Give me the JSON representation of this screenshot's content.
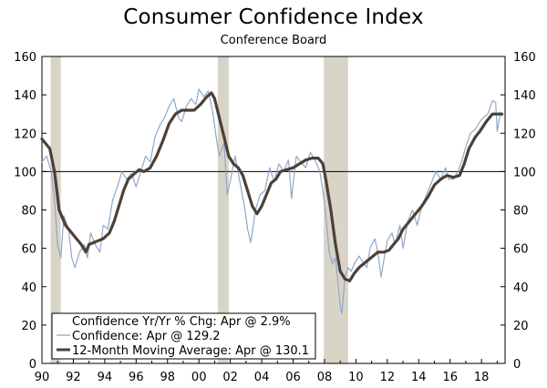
{
  "chart_data": {
    "type": "line",
    "title": "Consumer Confidence Index",
    "subtitle": "Conference Board",
    "ylim": [
      0,
      160
    ],
    "yticks": [
      0,
      20,
      40,
      60,
      80,
      100,
      120,
      140,
      160
    ],
    "xlim": [
      1990,
      2019.5
    ],
    "xticks": [
      {
        "value": 1990,
        "label": "90"
      },
      {
        "value": 1992,
        "label": "92"
      },
      {
        "value": 1994,
        "label": "94"
      },
      {
        "value": 1996,
        "label": "96"
      },
      {
        "value": 1998,
        "label": "98"
      },
      {
        "value": 2000,
        "label": "00"
      },
      {
        "value": 2002,
        "label": "02"
      },
      {
        "value": 2004,
        "label": "04"
      },
      {
        "value": 2006,
        "label": "06"
      },
      {
        "value": 2008,
        "label": "08"
      },
      {
        "value": 2010,
        "label": "10"
      },
      {
        "value": 2012,
        "label": "12"
      },
      {
        "value": 2014,
        "label": "14"
      },
      {
        "value": 2016,
        "label": "16"
      },
      {
        "value": 2018,
        "label": "18"
      }
    ],
    "reference_line": 100,
    "recessions": [
      [
        1990.55,
        1991.2
      ],
      [
        2001.2,
        2001.9
      ],
      [
        2007.95,
        2009.5
      ]
    ],
    "legend": [
      {
        "label": "Confidence Yr/Yr % Chg: Apr @ 2.9%",
        "style": "none"
      },
      {
        "label": "Confidence: Apr @ 129.2",
        "style": "thin"
      },
      {
        "label": "12-Month Moving Average: Apr @ 130.1",
        "style": "thick"
      }
    ],
    "series": [
      {
        "name": "Confidence",
        "color": "#8fa8c8",
        "points": [
          [
            1990.0,
            105
          ],
          [
            1990.3,
            108
          ],
          [
            1990.6,
            100
          ],
          [
            1990.8,
            85
          ],
          [
            1991.0,
            62
          ],
          [
            1991.2,
            55
          ],
          [
            1991.4,
            77
          ],
          [
            1991.7,
            70
          ],
          [
            1991.9,
            55
          ],
          [
            1992.1,
            50
          ],
          [
            1992.4,
            58
          ],
          [
            1992.7,
            62
          ],
          [
            1992.9,
            55
          ],
          [
            1993.1,
            68
          ],
          [
            1993.4,
            62
          ],
          [
            1993.7,
            58
          ],
          [
            1993.9,
            72
          ],
          [
            1994.2,
            70
          ],
          [
            1994.5,
            85
          ],
          [
            1994.8,
            92
          ],
          [
            1995.1,
            100
          ],
          [
            1995.4,
            96
          ],
          [
            1995.7,
            99
          ],
          [
            1996.0,
            92
          ],
          [
            1996.3,
            100
          ],
          [
            1996.6,
            108
          ],
          [
            1996.9,
            105
          ],
          [
            1997.2,
            118
          ],
          [
            1997.5,
            124
          ],
          [
            1997.8,
            128
          ],
          [
            1998.1,
            134
          ],
          [
            1998.4,
            138
          ],
          [
            1998.7,
            128
          ],
          [
            1998.9,
            126
          ],
          [
            1999.2,
            134
          ],
          [
            1999.5,
            138
          ],
          [
            1999.8,
            135
          ],
          [
            2000.0,
            143
          ],
          [
            2000.3,
            139
          ],
          [
            2000.6,
            142
          ],
          [
            2000.9,
            130
          ],
          [
            2001.1,
            118
          ],
          [
            2001.3,
            108
          ],
          [
            2001.6,
            115
          ],
          [
            2001.8,
            88
          ],
          [
            2002.0,
            95
          ],
          [
            2002.3,
            108
          ],
          [
            2002.6,
            95
          ],
          [
            2002.9,
            82
          ],
          [
            2003.1,
            70
          ],
          [
            2003.3,
            63
          ],
          [
            2003.6,
            80
          ],
          [
            2003.9,
            88
          ],
          [
            2004.2,
            90
          ],
          [
            2004.5,
            102
          ],
          [
            2004.8,
            95
          ],
          [
            2005.1,
            104
          ],
          [
            2005.4,
            100
          ],
          [
            2005.7,
            106
          ],
          [
            2005.9,
            86
          ],
          [
            2006.2,
            108
          ],
          [
            2006.5,
            105
          ],
          [
            2006.8,
            102
          ],
          [
            2007.1,
            110
          ],
          [
            2007.4,
            106
          ],
          [
            2007.7,
            100
          ],
          [
            2007.9,
            90
          ],
          [
            2008.1,
            76
          ],
          [
            2008.3,
            58
          ],
          [
            2008.5,
            52
          ],
          [
            2008.7,
            55
          ],
          [
            2008.9,
            38
          ],
          [
            2009.0,
            30
          ],
          [
            2009.1,
            26
          ],
          [
            2009.3,
            45
          ],
          [
            2009.5,
            50
          ],
          [
            2009.7,
            48
          ],
          [
            2009.9,
            52
          ],
          [
            2010.2,
            56
          ],
          [
            2010.5,
            52
          ],
          [
            2010.7,
            50
          ],
          [
            2010.9,
            60
          ],
          [
            2011.2,
            65
          ],
          [
            2011.4,
            58
          ],
          [
            2011.6,
            45
          ],
          [
            2011.8,
            55
          ],
          [
            2012.0,
            64
          ],
          [
            2012.3,
            68
          ],
          [
            2012.5,
            62
          ],
          [
            2012.8,
            72
          ],
          [
            2013.0,
            60
          ],
          [
            2013.3,
            74
          ],
          [
            2013.6,
            80
          ],
          [
            2013.9,
            72
          ],
          [
            2014.2,
            82
          ],
          [
            2014.5,
            88
          ],
          [
            2014.8,
            94
          ],
          [
            2015.1,
            100
          ],
          [
            2015.4,
            96
          ],
          [
            2015.7,
            102
          ],
          [
            2015.9,
            96
          ],
          [
            2016.2,
            96
          ],
          [
            2016.5,
            100
          ],
          [
            2016.8,
            107
          ],
          [
            2017.0,
            113
          ],
          [
            2017.3,
            120
          ],
          [
            2017.6,
            122
          ],
          [
            2017.9,
            126
          ],
          [
            2018.1,
            128
          ],
          [
            2018.4,
            130
          ],
          [
            2018.7,
            137
          ],
          [
            2018.9,
            136
          ],
          [
            2019.0,
            121
          ],
          [
            2019.2,
            131
          ],
          [
            2019.3,
            129
          ]
        ]
      },
      {
        "name": "12-Month Moving Average",
        "color": "#4e4037",
        "points": [
          [
            1990.0,
            117
          ],
          [
            1990.5,
            112
          ],
          [
            1990.8,
            100
          ],
          [
            1991.1,
            80
          ],
          [
            1991.5,
            72
          ],
          [
            1991.9,
            68
          ],
          [
            1992.2,
            65
          ],
          [
            1992.5,
            62
          ],
          [
            1992.8,
            58
          ],
          [
            1993.0,
            62
          ],
          [
            1993.3,
            63
          ],
          [
            1993.6,
            64
          ],
          [
            1993.9,
            65
          ],
          [
            1994.3,
            68
          ],
          [
            1994.6,
            74
          ],
          [
            1994.9,
            82
          ],
          [
            1995.2,
            90
          ],
          [
            1995.5,
            96
          ],
          [
            1995.9,
            99
          ],
          [
            1996.2,
            101
          ],
          [
            1996.5,
            100
          ],
          [
            1996.9,
            102
          ],
          [
            1997.3,
            108
          ],
          [
            1997.7,
            116
          ],
          [
            1998.1,
            125
          ],
          [
            1998.5,
            130
          ],
          [
            1998.9,
            132
          ],
          [
            1999.3,
            132
          ],
          [
            1999.7,
            132
          ],
          [
            2000.1,
            135
          ],
          [
            2000.5,
            139
          ],
          [
            2000.8,
            141
          ],
          [
            2001.0,
            138
          ],
          [
            2001.3,
            128
          ],
          [
            2001.6,
            118
          ],
          [
            2001.9,
            108
          ],
          [
            2002.2,
            104
          ],
          [
            2002.5,
            102
          ],
          [
            2002.8,
            98
          ],
          [
            2003.1,
            90
          ],
          [
            2003.4,
            82
          ],
          [
            2003.7,
            78
          ],
          [
            2004.0,
            82
          ],
          [
            2004.3,
            88
          ],
          [
            2004.6,
            94
          ],
          [
            2004.9,
            96
          ],
          [
            2005.2,
            100
          ],
          [
            2005.6,
            101
          ],
          [
            2006.0,
            102
          ],
          [
            2006.4,
            104
          ],
          [
            2006.8,
            106
          ],
          [
            2007.2,
            107
          ],
          [
            2007.6,
            107
          ],
          [
            2007.9,
            104
          ],
          [
            2008.1,
            95
          ],
          [
            2008.4,
            80
          ],
          [
            2008.7,
            62
          ],
          [
            2009.0,
            48
          ],
          [
            2009.3,
            44
          ],
          [
            2009.6,
            43
          ],
          [
            2009.9,
            47
          ],
          [
            2010.2,
            50
          ],
          [
            2010.5,
            52
          ],
          [
            2010.8,
            54
          ],
          [
            2011.1,
            56
          ],
          [
            2011.4,
            58
          ],
          [
            2011.8,
            58
          ],
          [
            2012.1,
            59
          ],
          [
            2012.4,
            62
          ],
          [
            2012.7,
            65
          ],
          [
            2013.0,
            70
          ],
          [
            2013.4,
            74
          ],
          [
            2013.8,
            78
          ],
          [
            2014.2,
            82
          ],
          [
            2014.6,
            87
          ],
          [
            2015.0,
            93
          ],
          [
            2015.4,
            96
          ],
          [
            2015.8,
            98
          ],
          [
            2016.2,
            97
          ],
          [
            2016.6,
            98
          ],
          [
            2016.9,
            104
          ],
          [
            2017.2,
            112
          ],
          [
            2017.6,
            118
          ],
          [
            2017.9,
            121
          ],
          [
            2018.3,
            126
          ],
          [
            2018.7,
            130
          ],
          [
            2019.0,
            130
          ],
          [
            2019.3,
            130
          ]
        ]
      }
    ]
  }
}
